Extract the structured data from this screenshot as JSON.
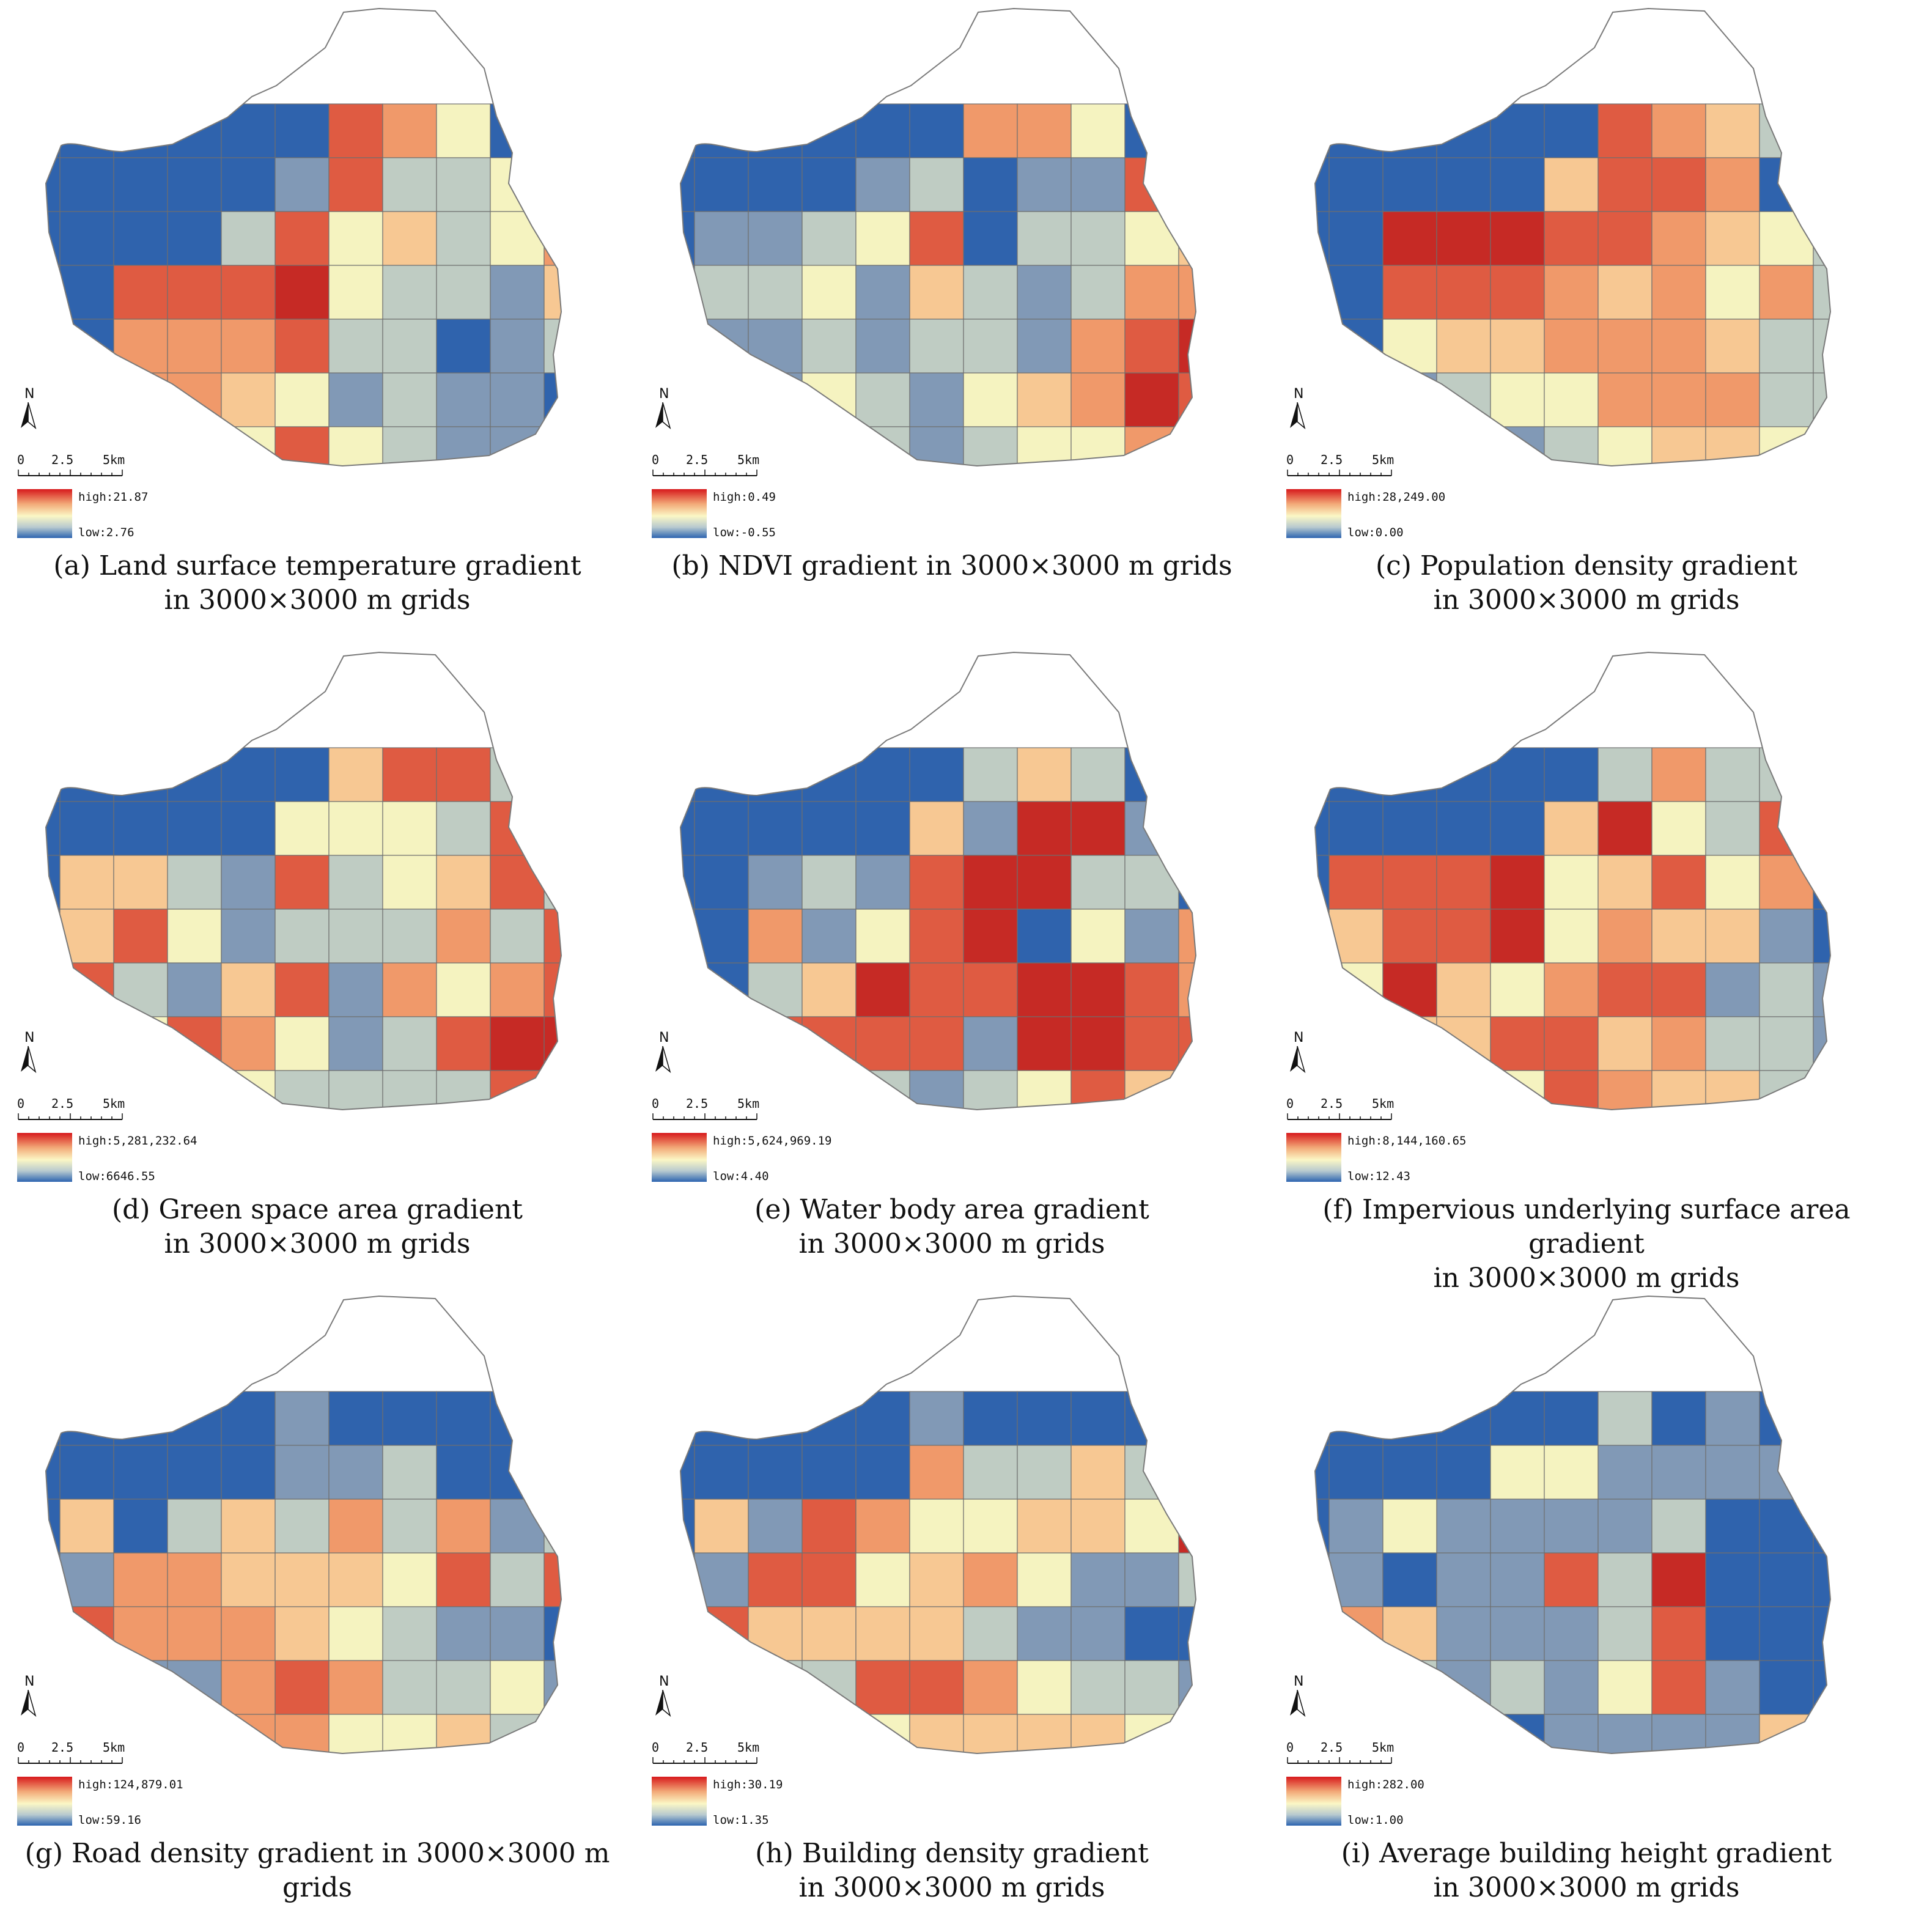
{
  "colors": [
    "#2f63ad",
    "#8199b6",
    "#bfccc3",
    "#f5f3c0",
    "#f7c893",
    "#f0996a",
    "#df5b42",
    "#c62a25"
  ],
  "north_label": "N",
  "scale_labels": [
    "0",
    "2.5",
    "5km"
  ],
  "panels": [
    {
      "caption_line1": "(a) Land surface temperature gradient",
      "caption_line2": "in 3000×3000 m grids",
      "legend_high": "high:21.87",
      "legend_low": "low:2.76",
      "grid": [
        "0000006530000",
        "0000016223000",
        "0000263423560",
        "0066673221432",
        "0055562201210",
        "0655431211020",
        "0744363211040",
        "0000665212240",
        "0000067326470"
      ]
    },
    {
      "caption_line1": "(b) NDVI gradient in 3000×3000 m grids",
      "caption_line2": "",
      "legend_high": "high:0.49",
      "legend_low": "low:-0.55",
      "grid": [
        "0000005530000",
        "0000120116300",
        "0112360223440",
        "0223142125510",
        "0112122156710",
        "0013213457610",
        "0003212335410",
        "0000112454400",
        "0000125634440"
      ]
    },
    {
      "caption_line1": "(c) Population density gradient",
      "caption_line2": "in 3000×3000 m grids",
      "legend_high": "high:28,249.00",
      "legend_low": "low:0.00",
      "grid": [
        "0000006542000",
        "0000046650000",
        "0077766543200",
        "0066654535210",
        "0034455542210",
        "0012335552210",
        "0000123443200",
        "0000122322200",
        "0000000000000"
      ]
    },
    {
      "caption_line1": "(d) Green space area gradient",
      "caption_line2": "in 3000×3000 m grids",
      "legend_high": "high:5,281,232.64",
      "legend_low": "low:6646.55",
      "grid": [
        "0000004662000",
        "0000033326200",
        "0442162346200",
        "0463122252600",
        "0621461535630",
        "0036531267720",
        "0003322226610",
        "0000466665500",
        "0000000000000"
      ]
    },
    {
      "caption_line1": "(e) Water body area gradient",
      "caption_line2": "in 3000×3000 m grids",
      "legend_high": "high:5,624,969.19",
      "legend_low": "low:4.40",
      "grid": [
        "0000002420000",
        "0000041771000",
        "0012167722000",
        "0051367031500",
        "0024766776500",
        "0066661776600",
        "0077212364000",
        "0000026641000",
        "0000000000000"
      ]
    },
    {
      "caption_line1": "(f) Impervious underlying surface area gradient",
      "caption_line2": "in 3000×3000 m grids",
      "legend_high": "high:8,144,160.65",
      "legend_low": "low:12.43",
      "grid": [
        "0000002522000",
        "0000047326000",
        "0666734635000",
        "0466735441000",
        "0374356612100",
        "0544664522100",
        "0003365442500",
        "0000543221000",
        "0000000000000"
      ]
    },
    {
      "caption_line1": "(g) Road density gradient in 3000×3000 m grids",
      "caption_line2": "",
      "legend_high": "high:124,879.01",
      "legend_low": "low:59.16",
      "grid": [
        "0000010000000",
        "0000011200000",
        "0402425251200",
        "0155444362600",
        "0655543211000",
        "0011565223120",
        "0001553342200",
        "0000233232000",
        "0000000000000"
      ]
    },
    {
      "caption_line1": "(h) Building density gradient",
      "caption_line2": "in 3000×3000 m grids",
      "legend_high": "high:30.19",
      "legend_low": "low:1.35",
      "grid": [
        "0000010000000",
        "0000052242000",
        "0416533443700",
        "0166345311200",
        "0644442110000",
        "0022665322110",
        "0002344443220",
        "0000222224000",
        "0000000000000"
      ]
    },
    {
      "caption_line1": "(i) Average building height gradient",
      "caption_line2": "in 3000×3000 m grids",
      "legend_high": "high:282.00",
      "legend_low": "low:1.00",
      "grid": [
        "0000002010000",
        "0000331111000",
        "0131111200000",
        "0101162700000",
        "0541112600000",
        "0121213610000",
        "0073011114600",
        "0000011223200",
        "0000000000000"
      ]
    }
  ]
}
